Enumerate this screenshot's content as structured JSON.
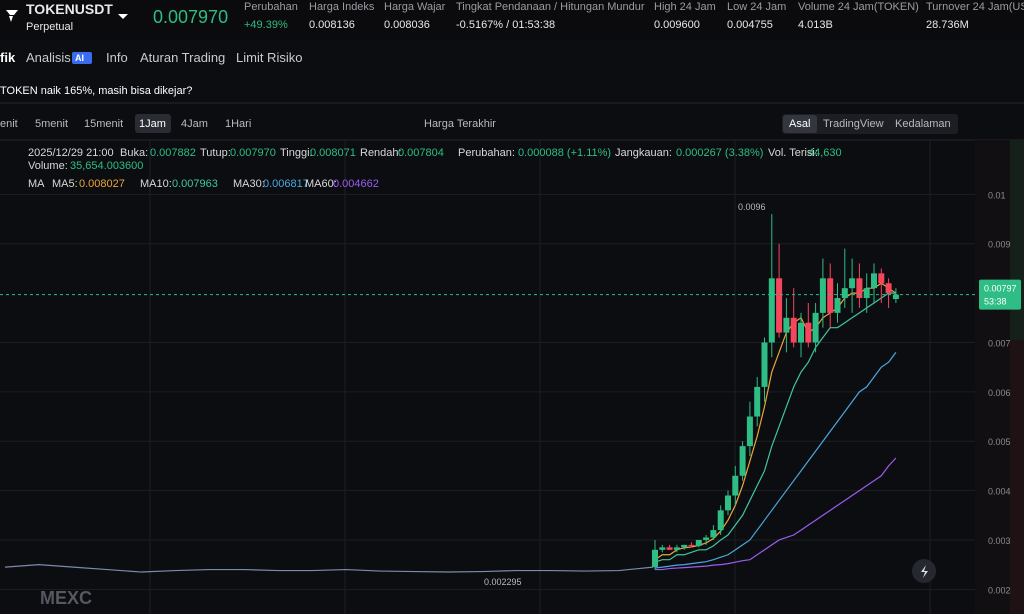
{
  "header": {
    "symbol": "TOKENUSDT",
    "contract": "Perpetual",
    "price": "0.007970",
    "stats": [
      {
        "label": "Perubahan",
        "value": "+49.39%",
        "color": "#2ebd85"
      },
      {
        "label": "Harga Indeks",
        "value": "0.008136"
      },
      {
        "label": "Harga Wajar",
        "value": "0.008036"
      },
      {
        "label": "Tingkat Pendanaan / Hitungan Mundur",
        "value": "-0.5167% / 01:53:38"
      },
      {
        "label": "High 24 Jam",
        "value": "0.009600"
      },
      {
        "label": "Low 24 Jam",
        "value": "0.004755"
      },
      {
        "label": "Volume 24 Jam(TOKEN)",
        "value": "4.013B"
      },
      {
        "label": "Turnover 24 Jam(US",
        "value": "28.736M"
      }
    ]
  },
  "tabs": {
    "items": [
      "fik",
      "Analisis",
      "Info",
      "Aturan Trading",
      "Limit Risiko"
    ],
    "badge": "AI"
  },
  "notice": "TOKEN naik 165%, masih bisa dikejar?",
  "toolbar": {
    "intervals": [
      "enit",
      "5menit",
      "15menit",
      "1Jam",
      "4Jam",
      "1Hari"
    ],
    "active": 3,
    "price_type": "Harga Terakhir",
    "views": [
      "Asal",
      "TradingView",
      "Kedalaman"
    ]
  },
  "info": {
    "time": "2025/12/29 21:00",
    "fields": [
      {
        "label": "Buka:",
        "value": "0.007882"
      },
      {
        "label": "Tutup:",
        "value": "0.007970"
      },
      {
        "label": "Tinggi:",
        "value": "0.008071"
      },
      {
        "label": "Rendah:",
        "value": "0.007804"
      },
      {
        "label": "Perubahan:",
        "value": "0.000088 (+1.11%)"
      },
      {
        "label": "Jangkauan:",
        "value": "0.000267 (3.38%)"
      },
      {
        "label": "Vol. Terisi:",
        "value": "44,630"
      }
    ],
    "volume_label": "Volume:",
    "volume": "35,654.003600"
  },
  "ma": {
    "label": "MA",
    "items": [
      {
        "name": "MA5:",
        "value": "0.008027",
        "color": "#f0a33a"
      },
      {
        "name": "MA10:",
        "value": "0.007963",
        "color": "#3fc7a0"
      },
      {
        "name": "MA30:",
        "value": "0.006817",
        "color": "#4aa8e0"
      },
      {
        "name": "MA60:",
        "value": "0.004662",
        "color": "#9b5cf0"
      }
    ]
  },
  "chart": {
    "ylim": [
      0.0015,
      0.011
    ],
    "yticks": [
      0.01,
      0.009,
      0.007,
      0.006,
      0.005,
      0.004,
      0.003,
      0.002
    ],
    "candles": [
      [
        0.00245,
        0.003,
        0.0024,
        0.0028
      ],
      [
        0.0028,
        0.0029,
        0.00275,
        0.00285
      ],
      [
        0.00285,
        0.0029,
        0.0028,
        0.0028
      ],
      [
        0.0028,
        0.0029,
        0.00275,
        0.00285
      ],
      [
        0.00285,
        0.0029,
        0.0028,
        0.0029
      ],
      [
        0.0029,
        0.00295,
        0.00285,
        0.00288
      ],
      [
        0.00288,
        0.003,
        0.00285,
        0.003
      ],
      [
        0.003,
        0.0031,
        0.0029,
        0.00305
      ],
      [
        0.00305,
        0.0033,
        0.003,
        0.0032
      ],
      [
        0.0032,
        0.0037,
        0.0031,
        0.0036
      ],
      [
        0.0036,
        0.004,
        0.0035,
        0.0039
      ],
      [
        0.0039,
        0.0045,
        0.0037,
        0.0043
      ],
      [
        0.0043,
        0.005,
        0.0042,
        0.0049
      ],
      [
        0.0049,
        0.0058,
        0.0047,
        0.0055
      ],
      [
        0.0055,
        0.0063,
        0.0053,
        0.0061
      ],
      [
        0.0061,
        0.0071,
        0.0058,
        0.007
      ],
      [
        0.007,
        0.0096,
        0.0067,
        0.0083
      ],
      [
        0.0083,
        0.009,
        0.0071,
        0.0072
      ],
      [
        0.0072,
        0.0079,
        0.0068,
        0.0075
      ],
      [
        0.0075,
        0.0081,
        0.0069,
        0.007
      ],
      [
        0.007,
        0.0076,
        0.0067,
        0.0074
      ],
      [
        0.0074,
        0.0078,
        0.0069,
        0.007
      ],
      [
        0.007,
        0.0078,
        0.0068,
        0.0076
      ],
      [
        0.0076,
        0.0087,
        0.0073,
        0.0083
      ],
      [
        0.0083,
        0.0086,
        0.0073,
        0.0076
      ],
      [
        0.0076,
        0.0082,
        0.0074,
        0.0079
      ],
      [
        0.0079,
        0.0089,
        0.0077,
        0.0081
      ],
      [
        0.0081,
        0.0087,
        0.0076,
        0.0083
      ],
      [
        0.0083,
        0.0086,
        0.0077,
        0.0079
      ],
      [
        0.0079,
        0.0084,
        0.0076,
        0.0081
      ],
      [
        0.0081,
        0.0086,
        0.0078,
        0.0084
      ],
      [
        0.0084,
        0.0085,
        0.0078,
        0.0082
      ],
      [
        0.0082,
        0.0083,
        0.0077,
        0.008
      ],
      [
        0.00788,
        0.0081,
        0.0078,
        0.00797
      ]
    ],
    "history": [
      0.00245,
      0.0025,
      0.00245,
      0.0024,
      0.00235,
      0.00238,
      0.0024,
      0.0024,
      0.00238,
      0.00238,
      0.0024,
      0.00237,
      0.00236,
      0.00235,
      0.00236,
      0.00238,
      0.00238,
      0.00237,
      0.00238,
      0.00245
    ],
    "ma_values": [
      [
        0.0026,
        0.0027,
        0.0027,
        0.0028,
        0.00284,
        0.00286,
        0.00289,
        0.00294,
        0.00303,
        0.00318,
        0.0034,
        0.0037,
        0.0041,
        0.0046,
        0.0051,
        0.0057,
        0.0064,
        0.0068,
        0.0072,
        0.0074,
        0.0075,
        0.0072,
        0.0073,
        0.0075,
        0.0076,
        0.0077,
        0.0079,
        0.008,
        0.008,
        0.0081,
        0.0081,
        0.0082,
        0.0081,
        0.008
      ],
      [
        0.00255,
        0.0026,
        0.0026,
        0.0027,
        0.0027,
        0.00275,
        0.0028,
        0.0028,
        0.00288,
        0.003,
        0.0031,
        0.0033,
        0.0035,
        0.0038,
        0.0041,
        0.0044,
        0.0049,
        0.0053,
        0.0057,
        0.0061,
        0.0064,
        0.0066,
        0.0069,
        0.0071,
        0.0073,
        0.0073,
        0.0074,
        0.0075,
        0.0076,
        0.0077,
        0.0078,
        0.0079,
        0.008,
        0.008
      ],
      [
        0.00243,
        0.00245,
        0.00247,
        0.00249,
        0.0025,
        0.00252,
        0.00254,
        0.00256,
        0.0026,
        0.00265,
        0.0027,
        0.0028,
        0.0029,
        0.003,
        0.0032,
        0.0034,
        0.0036,
        0.0038,
        0.004,
        0.0042,
        0.0044,
        0.0046,
        0.0048,
        0.005,
        0.0052,
        0.0054,
        0.0056,
        0.0058,
        0.006,
        0.0061,
        0.0063,
        0.0065,
        0.0066,
        0.0068
      ],
      [
        0.0024,
        0.0024,
        0.00242,
        0.00243,
        0.00244,
        0.00245,
        0.00246,
        0.00247,
        0.00249,
        0.0025,
        0.00252,
        0.00255,
        0.00258,
        0.0026,
        0.0027,
        0.0028,
        0.0029,
        0.003,
        0.00305,
        0.0031,
        0.0032,
        0.0033,
        0.0034,
        0.0035,
        0.0036,
        0.0037,
        0.0038,
        0.0039,
        0.004,
        0.0041,
        0.0042,
        0.0043,
        0.0045,
        0.00466
      ]
    ],
    "last_price": 0.00797,
    "price_tag": "0.00797",
    "countdown": "53:38",
    "high_label": "0.0096",
    "low_label": "0.002295",
    "watermark": "MEXC"
  }
}
